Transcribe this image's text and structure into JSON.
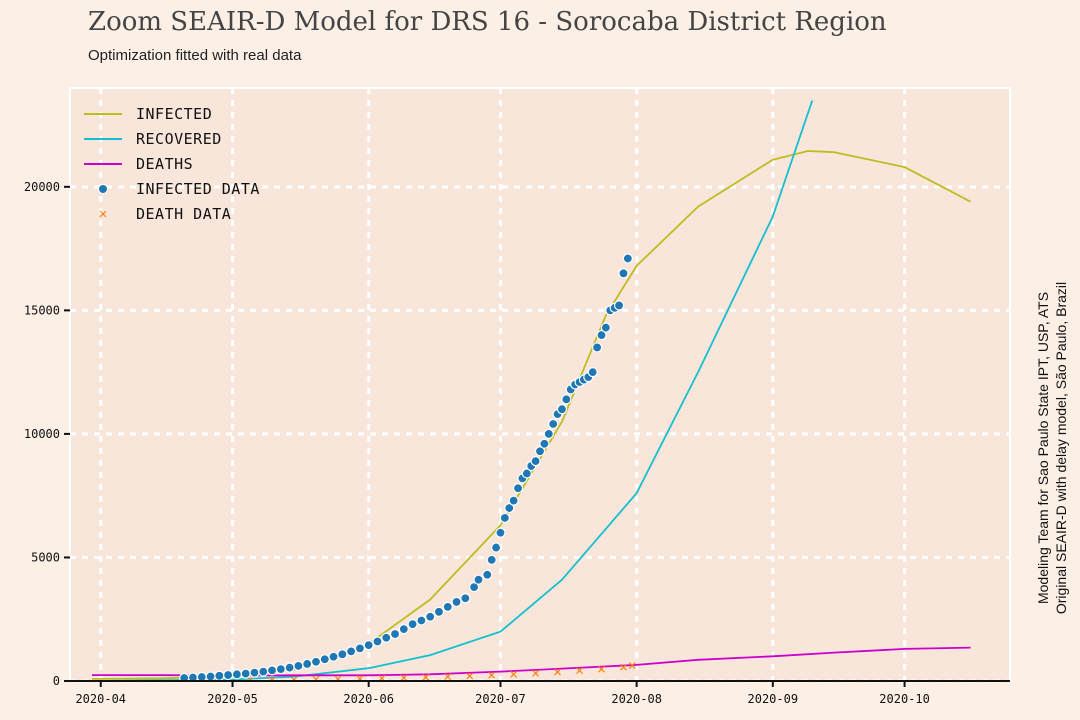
{
  "chart_data": {
    "type": "line",
    "title": "Zoom SEAIR-D Model for DRS 16 - Sorocaba District Region",
    "subtitle": "Optimization fitted with real data",
    "credits": [
      "Modeling Team for Sao Paulo State IPT, USP, ATS",
      "Original SEAIR-D with delay model, São Paulo, Brazil"
    ],
    "x_axis": {
      "type": "date",
      "range": [
        "2020-03-25",
        "2020-10-25"
      ],
      "ticks": [
        {
          "date": "2020-04-01",
          "label": "2020-04"
        },
        {
          "date": "2020-05-01",
          "label": "2020-05"
        },
        {
          "date": "2020-06-01",
          "label": "2020-06"
        },
        {
          "date": "2020-07-01",
          "label": "2020-07"
        },
        {
          "date": "2020-08-01",
          "label": "2020-08"
        },
        {
          "date": "2020-09-01",
          "label": "2020-09"
        },
        {
          "date": "2020-10-01",
          "label": "2020-10"
        }
      ]
    },
    "y_axis": {
      "range": [
        0,
        24000
      ],
      "ticks": [
        0,
        5000,
        10000,
        15000,
        20000
      ],
      "tick_labels": [
        "0",
        "5000",
        "10000",
        "15000",
        "20000"
      ]
    },
    "grid": true,
    "legend": {
      "position": "top-left"
    },
    "series": [
      {
        "name": "Infected",
        "kind": "line",
        "color": "#bcbd22",
        "points": [
          [
            "2020-03-30",
            80
          ],
          [
            "2020-04-15",
            110
          ],
          [
            "2020-05-01",
            200
          ],
          [
            "2020-05-15",
            450
          ],
          [
            "2020-06-01",
            1500
          ],
          [
            "2020-06-15",
            3300
          ],
          [
            "2020-07-01",
            6300
          ],
          [
            "2020-07-15",
            10500
          ],
          [
            "2020-07-25",
            14800
          ],
          [
            "2020-08-01",
            16800
          ],
          [
            "2020-08-15",
            19200
          ],
          [
            "2020-09-01",
            21100
          ],
          [
            "2020-09-09",
            21450
          ],
          [
            "2020-09-15",
            21400
          ],
          [
            "2020-10-01",
            20800
          ],
          [
            "2020-10-16",
            19400
          ]
        ]
      },
      {
        "name": "Recovered",
        "kind": "line",
        "color": "#17becf",
        "points": [
          [
            "2020-03-30",
            0
          ],
          [
            "2020-05-01",
            60
          ],
          [
            "2020-05-15",
            180
          ],
          [
            "2020-06-01",
            520
          ],
          [
            "2020-06-15",
            1050
          ],
          [
            "2020-07-01",
            2000
          ],
          [
            "2020-07-15",
            4100
          ],
          [
            "2020-08-01",
            7600
          ],
          [
            "2020-08-15",
            12500
          ],
          [
            "2020-09-01",
            18800
          ],
          [
            "2020-09-10",
            23500
          ]
        ]
      },
      {
        "name": "Deaths",
        "kind": "line",
        "color": "#cc00cc",
        "points": [
          [
            "2020-03-30",
            240
          ],
          [
            "2020-04-15",
            240
          ],
          [
            "2020-05-01",
            220
          ],
          [
            "2020-05-15",
            230
          ],
          [
            "2020-06-01",
            230
          ],
          [
            "2020-06-15",
            270
          ],
          [
            "2020-07-01",
            380
          ],
          [
            "2020-07-15",
            500
          ],
          [
            "2020-08-01",
            650
          ],
          [
            "2020-08-15",
            860
          ],
          [
            "2020-09-01",
            1000
          ],
          [
            "2020-09-15",
            1150
          ],
          [
            "2020-10-01",
            1300
          ],
          [
            "2020-10-16",
            1350
          ]
        ]
      },
      {
        "name": "Infected data",
        "kind": "scatter",
        "color": "#1f77b4",
        "points": [
          [
            "2020-04-20",
            120
          ],
          [
            "2020-04-22",
            140
          ],
          [
            "2020-04-24",
            160
          ],
          [
            "2020-04-26",
            180
          ],
          [
            "2020-04-28",
            210
          ],
          [
            "2020-04-30",
            240
          ],
          [
            "2020-05-02",
            270
          ],
          [
            "2020-05-04",
            300
          ],
          [
            "2020-05-06",
            340
          ],
          [
            "2020-05-08",
            380
          ],
          [
            "2020-05-10",
            430
          ],
          [
            "2020-05-12",
            480
          ],
          [
            "2020-05-14",
            540
          ],
          [
            "2020-05-16",
            610
          ],
          [
            "2020-05-18",
            690
          ],
          [
            "2020-05-20",
            780
          ],
          [
            "2020-05-22",
            880
          ],
          [
            "2020-05-24",
            980
          ],
          [
            "2020-05-26",
            1080
          ],
          [
            "2020-05-28",
            1200
          ],
          [
            "2020-05-30",
            1320
          ],
          [
            "2020-06-01",
            1450
          ],
          [
            "2020-06-03",
            1600
          ],
          [
            "2020-06-05",
            1750
          ],
          [
            "2020-06-07",
            1900
          ],
          [
            "2020-06-09",
            2100
          ],
          [
            "2020-06-11",
            2300
          ],
          [
            "2020-06-13",
            2450
          ],
          [
            "2020-06-15",
            2600
          ],
          [
            "2020-06-17",
            2800
          ],
          [
            "2020-06-19",
            3000
          ],
          [
            "2020-06-21",
            3200
          ],
          [
            "2020-06-23",
            3350
          ],
          [
            "2020-06-25",
            3800
          ],
          [
            "2020-06-26",
            4100
          ],
          [
            "2020-06-28",
            4300
          ],
          [
            "2020-06-29",
            4900
          ],
          [
            "2020-06-30",
            5400
          ],
          [
            "2020-07-01",
            6000
          ],
          [
            "2020-07-02",
            6600
          ],
          [
            "2020-07-03",
            7000
          ],
          [
            "2020-07-04",
            7300
          ],
          [
            "2020-07-05",
            7800
          ],
          [
            "2020-07-06",
            8200
          ],
          [
            "2020-07-07",
            8400
          ],
          [
            "2020-07-08",
            8700
          ],
          [
            "2020-07-09",
            8900
          ],
          [
            "2020-07-10",
            9300
          ],
          [
            "2020-07-11",
            9600
          ],
          [
            "2020-07-12",
            10000
          ],
          [
            "2020-07-13",
            10400
          ],
          [
            "2020-07-14",
            10800
          ],
          [
            "2020-07-15",
            11000
          ],
          [
            "2020-07-16",
            11400
          ],
          [
            "2020-07-17",
            11800
          ],
          [
            "2020-07-18",
            12000
          ],
          [
            "2020-07-19",
            12100
          ],
          [
            "2020-07-20",
            12200
          ],
          [
            "2020-07-21",
            12300
          ],
          [
            "2020-07-22",
            12500
          ],
          [
            "2020-07-23",
            13500
          ],
          [
            "2020-07-24",
            14000
          ],
          [
            "2020-07-25",
            14300
          ],
          [
            "2020-07-26",
            15000
          ],
          [
            "2020-07-27",
            15100
          ],
          [
            "2020-07-28",
            15200
          ],
          [
            "2020-07-29",
            16500
          ],
          [
            "2020-07-30",
            17100
          ]
        ]
      },
      {
        "name": "Death data",
        "kind": "scatter-x",
        "color": "#ff7f0e",
        "points": [
          [
            "2020-04-20",
            5
          ],
          [
            "2020-04-25",
            10
          ],
          [
            "2020-04-30",
            15
          ],
          [
            "2020-05-05",
            25
          ],
          [
            "2020-05-10",
            35
          ],
          [
            "2020-05-15",
            50
          ],
          [
            "2020-05-20",
            65
          ],
          [
            "2020-05-25",
            80
          ],
          [
            "2020-05-30",
            95
          ],
          [
            "2020-06-04",
            110
          ],
          [
            "2020-06-09",
            130
          ],
          [
            "2020-06-14",
            150
          ],
          [
            "2020-06-19",
            175
          ],
          [
            "2020-06-24",
            200
          ],
          [
            "2020-06-29",
            235
          ],
          [
            "2020-07-04",
            270
          ],
          [
            "2020-07-09",
            310
          ],
          [
            "2020-07-14",
            360
          ],
          [
            "2020-07-19",
            420
          ],
          [
            "2020-07-24",
            480
          ],
          [
            "2020-07-29",
            560
          ],
          [
            "2020-07-31",
            620
          ]
        ]
      }
    ]
  }
}
